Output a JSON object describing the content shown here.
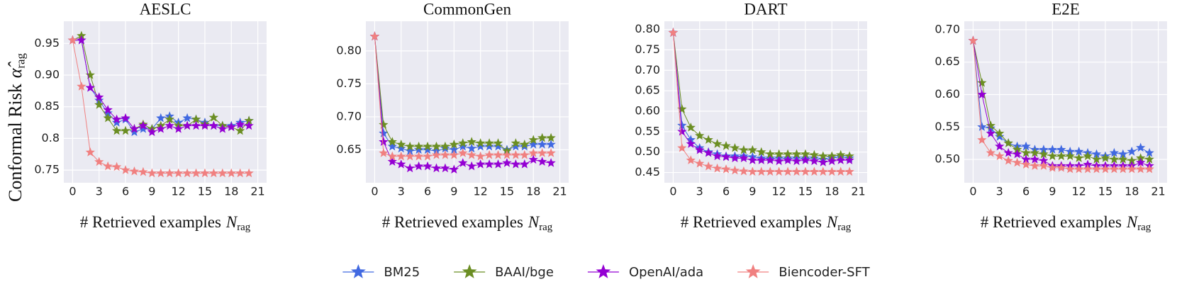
{
  "chart_data": [
    {
      "type": "line",
      "title": "AESLC",
      "y_label": {
        "text": "Conformal Risk",
        "symbol": "α̂",
        "subscript": "rag"
      },
      "x_label": {
        "text": "# Retrieved examples",
        "symbol": "N",
        "subscript": "rag"
      },
      "legend": "lower center",
      "grid": true,
      "marker": "star",
      "x": [
        0,
        1,
        2,
        3,
        4,
        5,
        6,
        7,
        8,
        9,
        10,
        11,
        12,
        13,
        14,
        15,
        16,
        17,
        18,
        19,
        20
      ],
      "xlim": [
        -1,
        22
      ],
      "xticks": [
        0,
        3,
        6,
        9,
        12,
        15,
        18,
        21
      ],
      "ylim": [
        0.73,
        0.985
      ],
      "yticks": [
        0.75,
        0.8,
        0.85,
        {
          "value": 0.9,
          "label": "0.90"
        },
        0.95
      ],
      "series": [
        {
          "name": "BM25",
          "color": "#4169e1",
          "values": [
            0.955,
            0.955,
            0.88,
            0.86,
            0.84,
            0.825,
            0.83,
            0.81,
            0.815,
            0.815,
            0.832,
            0.835,
            0.825,
            0.832,
            0.83,
            0.825,
            0.82,
            0.82,
            0.82,
            0.825,
            0.828
          ]
        },
        {
          "name": "BAAI/bge",
          "color": "#6b8e23",
          "values": [
            0.955,
            0.962,
            0.9,
            0.853,
            0.832,
            0.812,
            0.812,
            0.815,
            0.822,
            0.815,
            0.82,
            0.83,
            0.82,
            0.82,
            0.83,
            0.822,
            0.833,
            0.82,
            0.818,
            0.812,
            0.828
          ]
        },
        {
          "name": "OpenAI/ada",
          "color": "#9400d3",
          "values": [
            0.955,
            0.955,
            0.88,
            0.865,
            0.845,
            0.83,
            0.832,
            0.815,
            0.82,
            0.81,
            0.815,
            0.82,
            0.815,
            0.82,
            0.82,
            0.82,
            0.82,
            0.815,
            0.818,
            0.822,
            0.82
          ]
        },
        {
          "name": "Biencoder-SFT",
          "color": "#f08080",
          "values": [
            0.955,
            0.882,
            0.778,
            0.763,
            0.756,
            0.755,
            0.75,
            0.748,
            0.747,
            0.745,
            0.745,
            0.745,
            0.745,
            0.745,
            0.745,
            0.745,
            0.745,
            0.745,
            0.745,
            0.745,
            0.745
          ]
        }
      ]
    },
    {
      "type": "line",
      "title": "CommonGen",
      "x_label": {
        "text": "# Retrieved examples",
        "symbol": "N",
        "subscript": "rag"
      },
      "grid": true,
      "marker": "star",
      "x": [
        0,
        1,
        2,
        3,
        4,
        5,
        6,
        7,
        8,
        9,
        10,
        11,
        12,
        13,
        14,
        15,
        16,
        17,
        18,
        19,
        20
      ],
      "xlim": [
        -1,
        22
      ],
      "xticks": [
        0,
        3,
        6,
        9,
        12,
        15,
        18,
        21
      ],
      "ylim": [
        0.6,
        0.845
      ],
      "yticks": [
        0.65,
        {
          "value": 0.7,
          "label": "0.70"
        },
        0.75,
        {
          "value": 0.8,
          "label": "0.80"
        }
      ],
      "series": [
        {
          "name": "BM25",
          "color": "#4169e1",
          "values": [
            0.822,
            0.675,
            0.655,
            0.652,
            0.648,
            0.65,
            0.65,
            0.648,
            0.652,
            0.65,
            0.655,
            0.652,
            0.655,
            0.655,
            0.655,
            0.65,
            0.655,
            0.655,
            0.658,
            0.658,
            0.658
          ]
        },
        {
          "name": "BAAI/bge",
          "color": "#6b8e23",
          "values": [
            0.822,
            0.688,
            0.662,
            0.658,
            0.655,
            0.655,
            0.655,
            0.655,
            0.655,
            0.658,
            0.66,
            0.662,
            0.66,
            0.66,
            0.66,
            0.648,
            0.66,
            0.658,
            0.665,
            0.668,
            0.668
          ]
        },
        {
          "name": "OpenAI/ada",
          "color": "#9400d3",
          "values": [
            0.822,
            0.662,
            0.632,
            0.628,
            0.622,
            0.625,
            0.625,
            0.622,
            0.622,
            0.62,
            0.63,
            0.625,
            0.628,
            0.628,
            0.628,
            0.63,
            0.628,
            0.628,
            0.635,
            0.632,
            0.63
          ]
        },
        {
          "name": "Biencoder-SFT",
          "color": "#f08080",
          "values": [
            0.822,
            0.645,
            0.64,
            0.64,
            0.64,
            0.64,
            0.64,
            0.642,
            0.642,
            0.642,
            0.645,
            0.642,
            0.64,
            0.642,
            0.642,
            0.642,
            0.642,
            0.642,
            0.645,
            0.645,
            0.645
          ]
        }
      ]
    },
    {
      "type": "line",
      "title": "DART",
      "x_label": {
        "text": "# Retrieved examples",
        "symbol": "N",
        "subscript": "rag"
      },
      "grid": true,
      "marker": "star",
      "x": [
        0,
        1,
        2,
        3,
        4,
        5,
        6,
        7,
        8,
        9,
        10,
        11,
        12,
        13,
        14,
        15,
        16,
        17,
        18,
        19,
        20
      ],
      "xlim": [
        -1,
        22
      ],
      "xticks": [
        0,
        3,
        6,
        9,
        12,
        15,
        18,
        21
      ],
      "ylim": [
        0.425,
        0.82
      ],
      "yticks": [
        0.45,
        {
          "value": 0.5,
          "label": "0.50"
        },
        0.55,
        {
          "value": 0.6,
          "label": "0.60"
        },
        0.65,
        {
          "value": 0.7,
          "label": "0.70"
        },
        0.75,
        {
          "value": 0.8,
          "label": "0.80"
        }
      ],
      "series": [
        {
          "name": "BM25",
          "color": "#4169e1",
          "values": [
            0.792,
            0.565,
            0.53,
            0.51,
            0.5,
            0.495,
            0.49,
            0.49,
            0.49,
            0.488,
            0.485,
            0.485,
            0.485,
            0.485,
            0.485,
            0.485,
            0.485,
            0.482,
            0.485,
            0.488,
            0.485
          ]
        },
        {
          "name": "BAAI/bge",
          "color": "#6b8e23",
          "values": [
            0.792,
            0.605,
            0.56,
            0.54,
            0.53,
            0.52,
            0.515,
            0.51,
            0.505,
            0.505,
            0.5,
            0.495,
            0.495,
            0.495,
            0.495,
            0.495,
            0.493,
            0.49,
            0.49,
            0.493,
            0.49
          ]
        },
        {
          "name": "OpenAI/ada",
          "color": "#9400d3",
          "values": [
            0.792,
            0.55,
            0.52,
            0.505,
            0.498,
            0.49,
            0.488,
            0.485,
            0.485,
            0.48,
            0.48,
            0.48,
            0.478,
            0.48,
            0.478,
            0.48,
            0.478,
            0.475,
            0.478,
            0.48,
            0.48
          ]
        },
        {
          "name": "Biencoder-SFT",
          "color": "#f08080",
          "values": [
            0.792,
            0.51,
            0.48,
            0.472,
            0.465,
            0.46,
            0.458,
            0.455,
            0.453,
            0.452,
            0.452,
            0.452,
            0.452,
            0.452,
            0.452,
            0.452,
            0.452,
            0.452,
            0.452,
            0.452,
            0.452
          ]
        }
      ]
    },
    {
      "type": "line",
      "title": "E2E",
      "x_label": {
        "text": "# Retrieved examples",
        "symbol": "N",
        "subscript": "rag"
      },
      "grid": true,
      "marker": "star",
      "x": [
        0,
        1,
        2,
        3,
        4,
        5,
        6,
        7,
        8,
        9,
        10,
        11,
        12,
        13,
        14,
        15,
        16,
        17,
        18,
        19,
        20
      ],
      "xlim": [
        -1,
        22
      ],
      "xticks": [
        0,
        3,
        6,
        9,
        12,
        15,
        18,
        21
      ],
      "ylim": [
        0.464,
        0.713
      ],
      "yticks": [
        {
          "value": 0.5,
          "label": "0.50"
        },
        0.55,
        {
          "value": 0.6,
          "label": "0.60"
        },
        0.65,
        {
          "value": 0.7,
          "label": "0.70"
        }
      ],
      "series": [
        {
          "name": "BM25",
          "color": "#4169e1",
          "values": [
            0.683,
            0.55,
            0.548,
            0.535,
            0.525,
            0.52,
            0.52,
            0.515,
            0.515,
            0.515,
            0.515,
            0.512,
            0.512,
            0.51,
            0.508,
            0.505,
            0.51,
            0.508,
            0.512,
            0.518,
            0.51
          ]
        },
        {
          "name": "BAAI/bge",
          "color": "#6b8e23",
          "values": [
            0.683,
            0.618,
            0.552,
            0.54,
            0.525,
            0.515,
            0.51,
            0.51,
            0.508,
            0.505,
            0.505,
            0.505,
            0.502,
            0.505,
            0.5,
            0.502,
            0.5,
            0.5,
            0.498,
            0.502,
            0.5
          ]
        },
        {
          "name": "OpenAI/ada",
          "color": "#9400d3",
          "values": [
            0.683,
            0.6,
            0.54,
            0.52,
            0.51,
            0.508,
            0.5,
            0.5,
            0.498,
            0.49,
            0.49,
            0.49,
            0.49,
            0.492,
            0.49,
            0.49,
            0.49,
            0.49,
            0.49,
            0.495,
            0.49
          ]
        },
        {
          "name": "Biencoder-SFT",
          "color": "#f08080",
          "values": [
            0.683,
            0.53,
            0.51,
            0.505,
            0.498,
            0.495,
            0.492,
            0.49,
            0.49,
            0.487,
            0.487,
            0.485,
            0.485,
            0.485,
            0.485,
            0.485,
            0.485,
            0.485,
            0.485,
            0.485,
            0.485
          ]
        }
      ]
    }
  ]
}
